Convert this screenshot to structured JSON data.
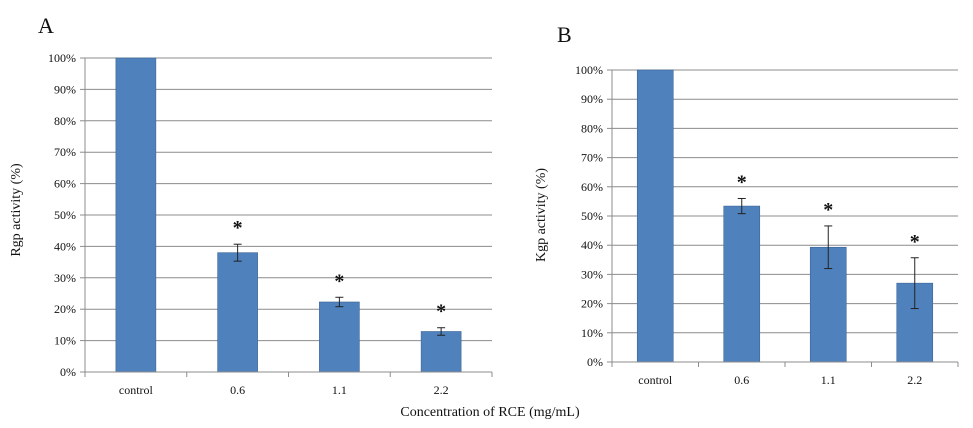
{
  "figure": {
    "shared_xlabel": "Concentration  of RCE (mg/mL)"
  },
  "colors": {
    "bar": "#4f81bd",
    "bar_edge": "#3c6596",
    "grid": "#8c8c8c",
    "axis": "#8c8c8c",
    "error": "#222222"
  },
  "chart_data": [
    {
      "type": "bar",
      "panel": "A",
      "title": "",
      "xlabel": "",
      "ylabel": "Rgp activity (%)",
      "categories": [
        "control",
        "0.6",
        "1.1",
        "2.2"
      ],
      "values": [
        100,
        38,
        22.3,
        12.9
      ],
      "errors": [
        0,
        2.7,
        1.5,
        1.2
      ],
      "significance": [
        "",
        "*",
        "*",
        "*"
      ],
      "ylim": [
        0,
        100
      ],
      "yticks": [
        0,
        10,
        20,
        30,
        40,
        50,
        60,
        70,
        80,
        90,
        100
      ],
      "ytick_suffix": "%",
      "grid": true,
      "legend": "none"
    },
    {
      "type": "bar",
      "panel": "B",
      "title": "",
      "xlabel": "",
      "ylabel": "Kgp activity (%)",
      "categories": [
        "control",
        "0.6",
        "1.1",
        "2.2"
      ],
      "values": [
        100,
        53.4,
        39.3,
        27
      ],
      "errors": [
        0,
        2.6,
        7.3,
        8.7
      ],
      "significance": [
        "",
        "*",
        "*",
        "*"
      ],
      "ylim": [
        0,
        100
      ],
      "yticks": [
        0,
        10,
        20,
        30,
        40,
        50,
        60,
        70,
        80,
        90,
        100
      ],
      "ytick_suffix": "%",
      "grid": true,
      "legend": "none"
    }
  ]
}
